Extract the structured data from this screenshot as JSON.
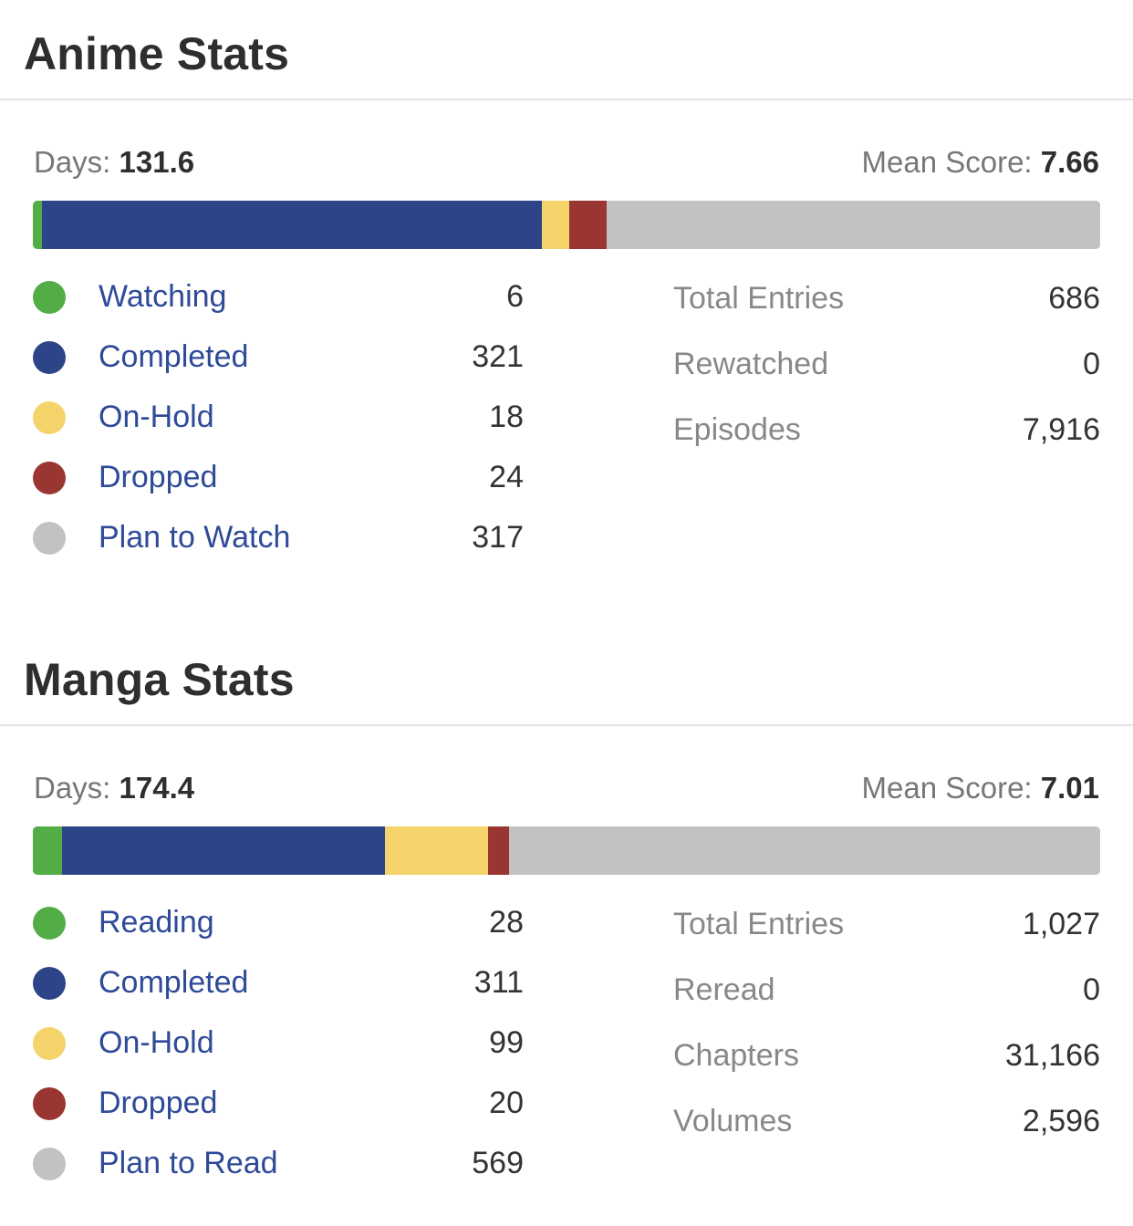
{
  "colors": {
    "watching": "#52ad47",
    "completed": "#2d4489",
    "on_hold": "#f4d46a",
    "dropped": "#993632",
    "plan": "#c2c2c2",
    "link": "#2e4a98"
  },
  "anime": {
    "title": "Anime Stats",
    "days_label": "Days:",
    "days_value": "131.6",
    "mean_label": "Mean Score:",
    "mean_value": "7.66",
    "statuses": [
      {
        "label": "Watching",
        "count": "6",
        "value": 6,
        "color": "#52ad47"
      },
      {
        "label": "Completed",
        "count": "321",
        "value": 321,
        "color": "#2d4489"
      },
      {
        "label": "On-Hold",
        "count": "18",
        "value": 18,
        "color": "#f4d46a"
      },
      {
        "label": "Dropped",
        "count": "24",
        "value": 24,
        "color": "#993632"
      },
      {
        "label": "Plan to Watch",
        "count": "317",
        "value": 317,
        "color": "#c2c2c2"
      }
    ],
    "totals": [
      {
        "label": "Total Entries",
        "value": "686"
      },
      {
        "label": "Rewatched",
        "value": "0"
      },
      {
        "label": "Episodes",
        "value": "7,916"
      }
    ]
  },
  "manga": {
    "title": "Manga Stats",
    "days_label": "Days:",
    "days_value": "174.4",
    "mean_label": "Mean Score:",
    "mean_value": "7.01",
    "statuses": [
      {
        "label": "Reading",
        "count": "28",
        "value": 28,
        "color": "#52ad47"
      },
      {
        "label": "Completed",
        "count": "311",
        "value": 311,
        "color": "#2d4489"
      },
      {
        "label": "On-Hold",
        "count": "99",
        "value": 99,
        "color": "#f4d46a"
      },
      {
        "label": "Dropped",
        "count": "20",
        "value": 20,
        "color": "#993632"
      },
      {
        "label": "Plan to Read",
        "count": "569",
        "value": 569,
        "color": "#c2c2c2"
      }
    ],
    "totals": [
      {
        "label": "Total Entries",
        "value": "1,027"
      },
      {
        "label": "Reread",
        "value": "0"
      },
      {
        "label": "Chapters",
        "value": "31,166"
      },
      {
        "label": "Volumes",
        "value": "2,596"
      }
    ]
  }
}
